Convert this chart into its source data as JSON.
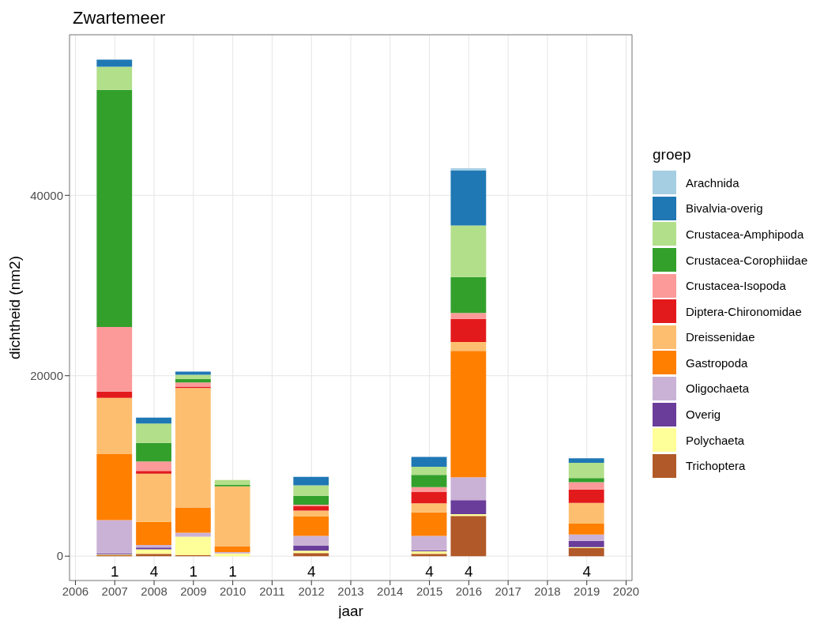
{
  "chart_data": {
    "type": "bar",
    "title": "Zwartemeer",
    "xlabel": "jaar",
    "ylabel": "dichtheid (nm2)",
    "legend_title": "groep",
    "stacked": true,
    "legend": "right",
    "grid": true,
    "x": [
      2007,
      2008,
      2009,
      2010,
      2012,
      2015,
      2016,
      2019
    ],
    "xlim": [
      2005.85,
      2020.15
    ],
    "xticks": [
      2006,
      2007,
      2008,
      2009,
      2010,
      2011,
      2012,
      2013,
      2014,
      2015,
      2016,
      2017,
      2018,
      2019,
      2020
    ],
    "ylim": [
      -2700,
      57800
    ],
    "yticks": [
      0,
      20000,
      40000
    ],
    "series": [
      {
        "name": "Trichoptera",
        "color": "#b15928",
        "values": [
          100,
          250,
          100,
          0,
          350,
          250,
          4450,
          900
        ]
      },
      {
        "name": "Polychaeta",
        "color": "#ffff99",
        "values": [
          100,
          500,
          2050,
          300,
          250,
          300,
          200,
          100
        ]
      },
      {
        "name": "Overig",
        "color": "#6a3d9a",
        "values": [
          100,
          200,
          0,
          0,
          550,
          100,
          1550,
          700
        ]
      },
      {
        "name": "Oligochaeta",
        "color": "#cab2d6",
        "values": [
          3700,
          300,
          450,
          150,
          1100,
          1600,
          2550,
          700
        ]
      },
      {
        "name": "Gastropoda",
        "color": "#ff7f00",
        "values": [
          7350,
          2550,
          2800,
          650,
          2150,
          2600,
          14000,
          1200
        ]
      },
      {
        "name": "Dreissenidae",
        "color": "#fdbf6f",
        "values": [
          6200,
          5350,
          13250,
          6650,
          650,
          1000,
          1000,
          2300
        ]
      },
      {
        "name": "Diptera-Chironomidae",
        "color": "#e31a1c",
        "values": [
          700,
          300,
          150,
          0,
          500,
          1250,
          2550,
          1500
        ]
      },
      {
        "name": "Crustacea-Isopoda",
        "color": "#fb9a99",
        "values": [
          7150,
          1050,
          450,
          0,
          150,
          550,
          650,
          800
        ]
      },
      {
        "name": "Crustacea-Corophiidae",
        "color": "#33a02c",
        "values": [
          26300,
          2050,
          400,
          150,
          1000,
          1350,
          4000,
          450
        ]
      },
      {
        "name": "Crustacea-Amphipoda",
        "color": "#b2df8a",
        "values": [
          2550,
          2150,
          450,
          550,
          1150,
          900,
          5700,
          1700
        ]
      },
      {
        "name": "Bivalvia-overig",
        "color": "#1f78b4",
        "values": [
          800,
          650,
          350,
          0,
          950,
          1100,
          6100,
          500
        ]
      },
      {
        "name": "Arachnida",
        "color": "#a6cee3",
        "values": [
          0,
          0,
          0,
          0,
          0,
          0,
          250,
          0
        ]
      }
    ],
    "annotations": [
      "1",
      "4",
      "1",
      "1",
      "4",
      "4",
      "4",
      "4"
    ]
  }
}
